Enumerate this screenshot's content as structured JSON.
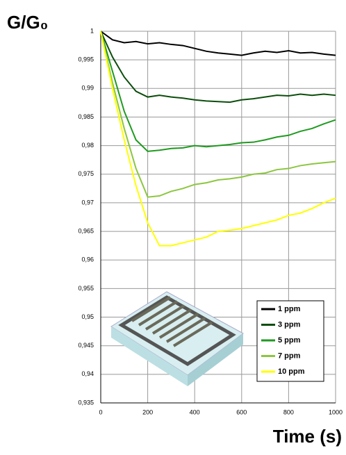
{
  "chart_data": {
    "type": "line",
    "y_label": "G/G₀",
    "x_label": "Time (s)",
    "x": [
      0,
      50,
      100,
      150,
      200,
      250,
      300,
      350,
      400,
      450,
      500,
      550,
      600,
      650,
      700,
      750,
      800,
      850,
      900,
      950,
      1000
    ],
    "series": [
      {
        "name": "1 ppm",
        "color": "#000000",
        "values": [
          1,
          0.9985,
          0.998,
          0.9982,
          0.9978,
          0.998,
          0.9977,
          0.9975,
          0.997,
          0.9965,
          0.9962,
          0.996,
          0.9958,
          0.9962,
          0.9965,
          0.9963,
          0.9966,
          0.9962,
          0.9963,
          0.996,
          0.9958
        ]
      },
      {
        "name": "3 ppm",
        "color": "#0b4d0b",
        "values": [
          1,
          0.9955,
          0.992,
          0.9895,
          0.9885,
          0.9888,
          0.9885,
          0.9883,
          0.988,
          0.9878,
          0.9877,
          0.9876,
          0.988,
          0.9882,
          0.9885,
          0.9888,
          0.9887,
          0.989,
          0.9888,
          0.989,
          0.9888
        ]
      },
      {
        "name": "5 ppm",
        "color": "#1f9a1f",
        "values": [
          1,
          0.993,
          0.986,
          0.981,
          0.979,
          0.9792,
          0.9795,
          0.9796,
          0.98,
          0.9798,
          0.98,
          0.9802,
          0.9805,
          0.9806,
          0.981,
          0.9815,
          0.9818,
          0.9825,
          0.983,
          0.9838,
          0.9845
        ]
      },
      {
        "name": "7 ppm",
        "color": "#8cc63f",
        "values": [
          1,
          0.991,
          0.983,
          0.976,
          0.971,
          0.9712,
          0.972,
          0.9725,
          0.9732,
          0.9735,
          0.974,
          0.9742,
          0.9745,
          0.975,
          0.9752,
          0.9758,
          0.976,
          0.9765,
          0.9768,
          0.977,
          0.9772
        ]
      },
      {
        "name": "10 ppm",
        "color": "#ffff00",
        "values": [
          1,
          0.99,
          0.981,
          0.973,
          0.9665,
          0.9625,
          0.9625,
          0.963,
          0.9635,
          0.964,
          0.965,
          0.9652,
          0.9655,
          0.966,
          0.9665,
          0.967,
          0.9678,
          0.9682,
          0.969,
          0.97,
          0.9708
        ]
      }
    ],
    "xlim": [
      0,
      1000
    ],
    "xticks": [
      0,
      200,
      400,
      600,
      800,
      1000
    ],
    "ylim": [
      0.935,
      1
    ],
    "yticks": [
      {
        "value": 0.935,
        "label": "0,935"
      },
      {
        "value": 0.94,
        "label": "0,94"
      },
      {
        "value": 0.945,
        "label": "0,945"
      },
      {
        "value": 0.95,
        "label": "0,95"
      },
      {
        "value": 0.955,
        "label": "0,955"
      },
      {
        "value": 0.96,
        "label": "0,96"
      },
      {
        "value": 0.965,
        "label": "0,965"
      },
      {
        "value": 0.97,
        "label": "0,97"
      },
      {
        "value": 0.975,
        "label": "0,975"
      },
      {
        "value": 0.98,
        "label": "0,98"
      },
      {
        "value": 0.985,
        "label": "0,985"
      },
      {
        "value": 0.99,
        "label": "0,99"
      },
      {
        "value": 0.995,
        "label": "0,995"
      },
      1
    ],
    "grid": true
  }
}
